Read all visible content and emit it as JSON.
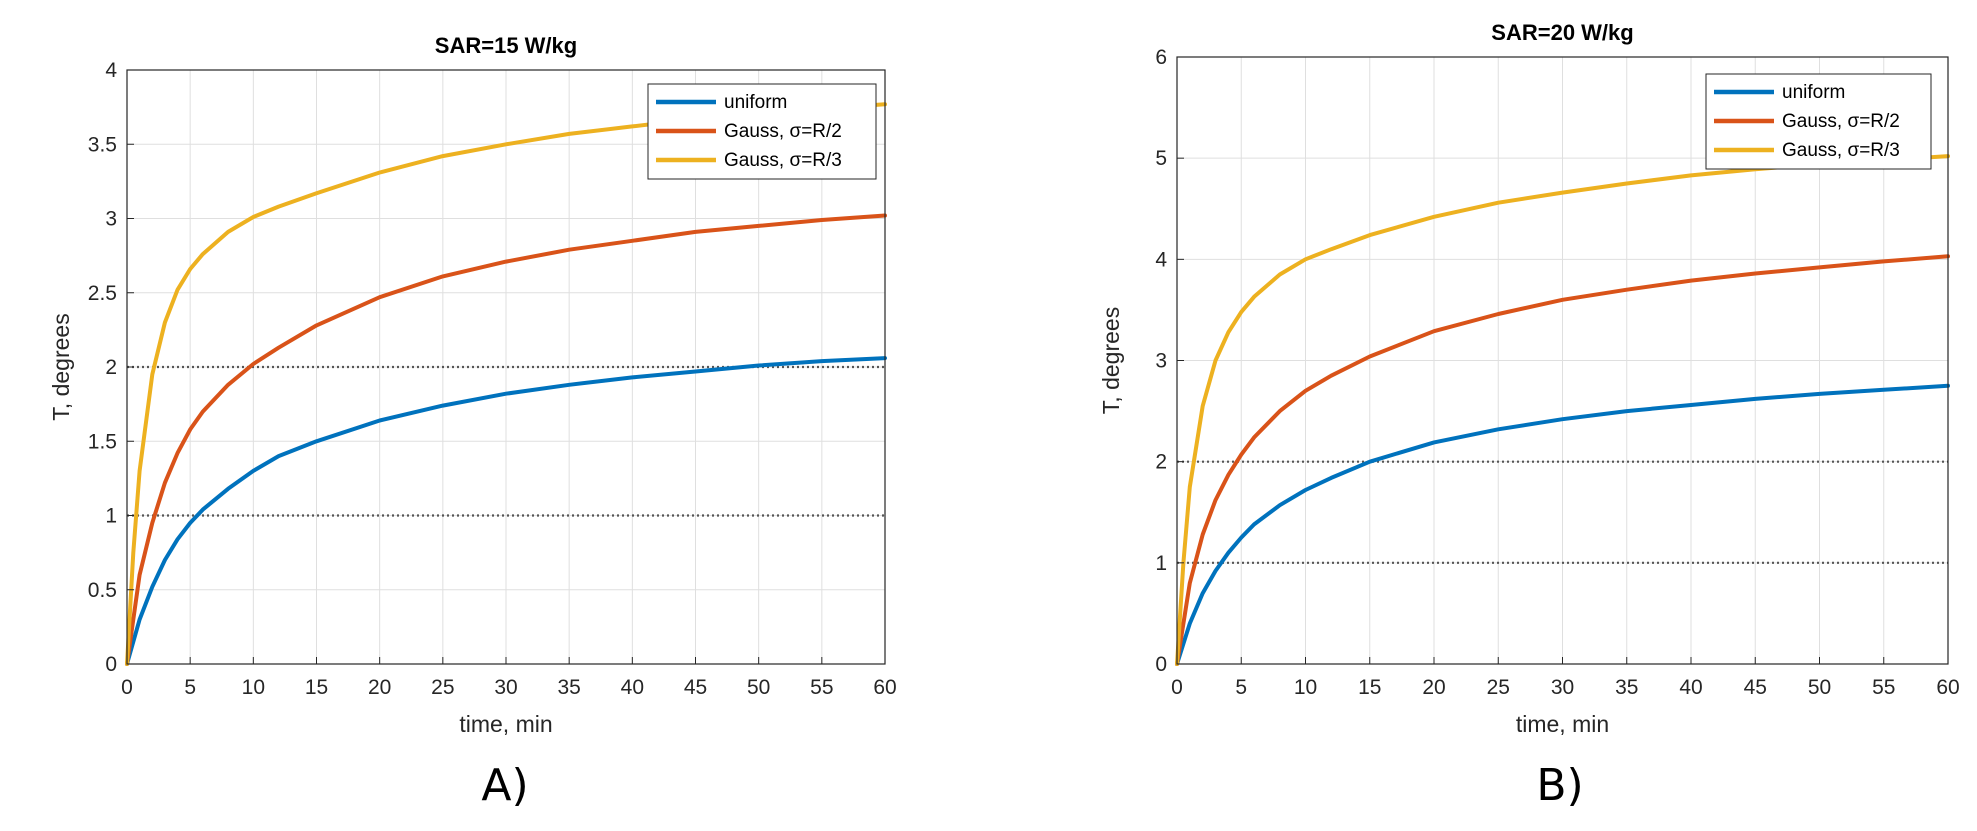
{
  "colors": {
    "uniform": "#0072BD",
    "gauss_r2": "#D95319",
    "gauss_r3": "#EDB120",
    "grid": "#dfdfdf",
    "threshold": "#555555"
  },
  "chart_data": [
    {
      "type": "line",
      "panel_label": "A)",
      "title": "SAR=15 W/kg",
      "xlabel": "time, min",
      "ylabel": "T, degrees",
      "xlim": [
        0,
        60
      ],
      "ylim": [
        0,
        4
      ],
      "xticks": [
        0,
        5,
        10,
        15,
        20,
        25,
        30,
        35,
        40,
        45,
        50,
        55,
        60
      ],
      "yticks": [
        0,
        0.5,
        1,
        1.5,
        2,
        2.5,
        3,
        3.5,
        4
      ],
      "ytick_labels": [
        "0",
        "0.5",
        "1",
        "1.5",
        "2",
        "2.5",
        "3",
        "3.5",
        "4"
      ],
      "grid": true,
      "legend_position": "top-right",
      "threshold_lines": [
        1,
        2
      ],
      "series": [
        {
          "name": "uniform",
          "color_key": "uniform",
          "x": [
            0,
            1,
            2,
            3,
            4,
            5,
            6,
            8,
            10,
            12,
            15,
            20,
            25,
            30,
            35,
            40,
            45,
            50,
            55,
            60
          ],
          "y": [
            0,
            0.3,
            0.52,
            0.7,
            0.84,
            0.95,
            1.04,
            1.18,
            1.3,
            1.4,
            1.5,
            1.64,
            1.74,
            1.82,
            1.88,
            1.93,
            1.97,
            2.01,
            2.04,
            2.06
          ]
        },
        {
          "name": "Gauss, σ=R/2",
          "color_key": "gauss_r2",
          "x": [
            0,
            1,
            2,
            3,
            4,
            5,
            6,
            8,
            10,
            12,
            15,
            20,
            25,
            30,
            35,
            40,
            45,
            50,
            55,
            60
          ],
          "y": [
            0,
            0.6,
            0.95,
            1.22,
            1.42,
            1.58,
            1.7,
            1.88,
            2.02,
            2.13,
            2.28,
            2.47,
            2.61,
            2.71,
            2.79,
            2.85,
            2.91,
            2.95,
            2.99,
            3.02
          ]
        },
        {
          "name": "Gauss, σ=R/3",
          "color_key": "gauss_r3",
          "x": [
            0,
            0.5,
            1,
            2,
            3,
            4,
            5,
            6,
            8,
            10,
            12,
            15,
            20,
            25,
            30,
            35,
            40,
            45,
            50,
            55,
            60
          ],
          "y": [
            0,
            0.75,
            1.3,
            1.95,
            2.3,
            2.52,
            2.66,
            2.76,
            2.91,
            3.01,
            3.08,
            3.17,
            3.31,
            3.42,
            3.5,
            3.57,
            3.62,
            3.67,
            3.71,
            3.74,
            3.77
          ]
        }
      ]
    },
    {
      "type": "line",
      "panel_label": "B)",
      "title": "SAR=20 W/kg",
      "xlabel": "time, min",
      "ylabel": "T, degrees",
      "xlim": [
        0,
        60
      ],
      "ylim": [
        0,
        6
      ],
      "xticks": [
        0,
        5,
        10,
        15,
        20,
        25,
        30,
        35,
        40,
        45,
        50,
        55,
        60
      ],
      "yticks": [
        0,
        1,
        2,
        3,
        4,
        5,
        6
      ],
      "ytick_labels": [
        "0",
        "1",
        "2",
        "3",
        "4",
        "5",
        "6"
      ],
      "grid": true,
      "legend_position": "top-right",
      "threshold_lines": [
        1,
        2
      ],
      "series": [
        {
          "name": "uniform",
          "color_key": "uniform",
          "x": [
            0,
            1,
            2,
            3,
            4,
            5,
            6,
            8,
            10,
            12,
            15,
            20,
            25,
            30,
            35,
            40,
            45,
            50,
            55,
            60
          ],
          "y": [
            0,
            0.4,
            0.7,
            0.92,
            1.1,
            1.25,
            1.38,
            1.57,
            1.72,
            1.84,
            2.0,
            2.19,
            2.32,
            2.42,
            2.5,
            2.56,
            2.62,
            2.67,
            2.71,
            2.75
          ]
        },
        {
          "name": "Gauss, σ=R/2",
          "color_key": "gauss_r2",
          "x": [
            0,
            1,
            2,
            3,
            4,
            5,
            6,
            8,
            10,
            12,
            15,
            20,
            25,
            30,
            35,
            40,
            45,
            50,
            55,
            60
          ],
          "y": [
            0,
            0.8,
            1.28,
            1.62,
            1.87,
            2.07,
            2.24,
            2.5,
            2.7,
            2.85,
            3.04,
            3.29,
            3.46,
            3.6,
            3.7,
            3.79,
            3.86,
            3.92,
            3.98,
            4.03
          ]
        },
        {
          "name": "Gauss, σ=R/3",
          "color_key": "gauss_r3",
          "x": [
            0,
            0.5,
            1,
            2,
            3,
            4,
            5,
            6,
            8,
            10,
            12,
            15,
            20,
            25,
            30,
            35,
            40,
            45,
            50,
            55,
            60
          ],
          "y": [
            0,
            1.0,
            1.75,
            2.55,
            3.0,
            3.28,
            3.48,
            3.63,
            3.85,
            4.0,
            4.1,
            4.24,
            4.42,
            4.56,
            4.66,
            4.75,
            4.83,
            4.89,
            4.94,
            4.98,
            5.02
          ]
        }
      ]
    }
  ]
}
